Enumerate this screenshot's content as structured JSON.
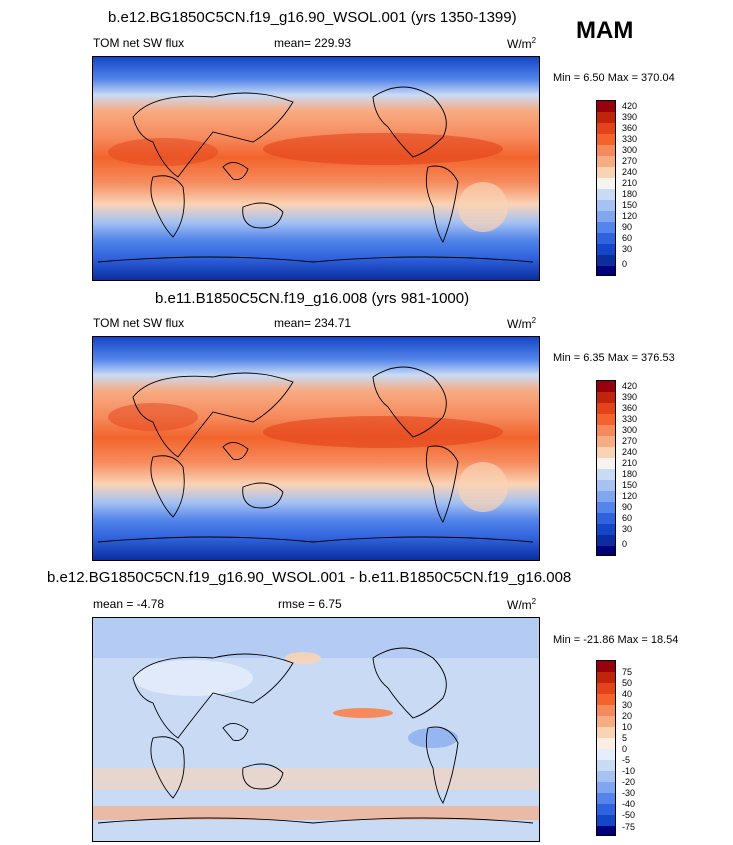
{
  "season": "MAM",
  "panels": [
    {
      "title": "b.e12.BG1850C5CN.f19_g16.90_WSOL.001 (yrs 1350-1399)",
      "left_label": "TOM net SW flux",
      "center_label": "mean= 229.93",
      "units": "W/m",
      "units_sup": "2",
      "minmax": "Min =   6.50 Max = 370.04",
      "colorbar_labels": [
        "420",
        "390",
        "360",
        "330",
        "300",
        "270",
        "240",
        "210",
        "180",
        "150",
        "120",
        "90",
        "60",
        "30",
        "0"
      ]
    },
    {
      "title": "b.e11.B1850C5CN.f19_g16.008 (yrs 981-1000)",
      "left_label": "TOM net SW flux",
      "center_label": "mean= 234.71",
      "units": "W/m",
      "units_sup": "2",
      "minmax": "Min =   6.35 Max = 376.53",
      "colorbar_labels": [
        "420",
        "390",
        "360",
        "330",
        "300",
        "270",
        "240",
        "210",
        "180",
        "150",
        "120",
        "90",
        "60",
        "30",
        "0"
      ]
    },
    {
      "title": "b.e12.BG1850C5CN.f19_g16.90_WSOL.001 - b.e11.B1850C5CN.f19_g16.008",
      "left_label": "mean =  -4.78",
      "center_label": "rmse =   6.75",
      "units": "W/m",
      "units_sup": "2",
      "minmax": "Min = -21.86 Max =  18.54",
      "colorbar_labels": [
        "75",
        "50",
        "40",
        "30",
        "20",
        "10",
        "5",
        "0",
        "-5",
        "-10",
        "-20",
        "-30",
        "-40",
        "-50",
        "-75"
      ]
    }
  ],
  "colors": {
    "field_scale": [
      "#99000d",
      "#c0240a",
      "#e3431b",
      "#f2642c",
      "#f68a5c",
      "#f7ac84",
      "#fad3b5",
      "#f7f3ee",
      "#c9daf5",
      "#a6c2f2",
      "#7fa6ee",
      "#5485ea",
      "#2f63dd",
      "#1446c8",
      "#0b2da0",
      "#00007d"
    ],
    "diff_scale": [
      "#99000d",
      "#c0240a",
      "#e3431b",
      "#f2642c",
      "#f68a5c",
      "#f7ac84",
      "#fad3b5",
      "#fceee2",
      "#e6eefb",
      "#c9daf5",
      "#a6c2f2",
      "#7fa6ee",
      "#5485ea",
      "#2f63dd",
      "#1446c8",
      "#00007d"
    ]
  }
}
